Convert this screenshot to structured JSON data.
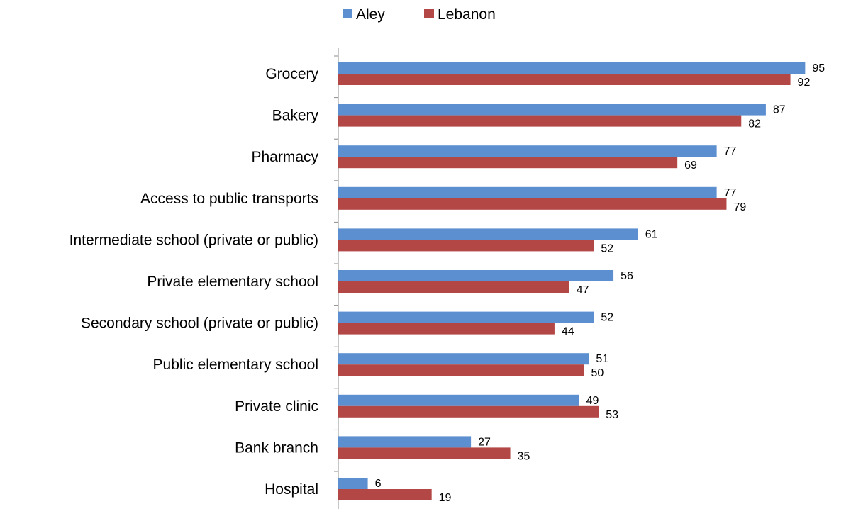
{
  "chart_data": {
    "type": "bar",
    "orientation": "horizontal",
    "categories": [
      "Grocery",
      "Bakery",
      "Pharmacy",
      "Access to public transports",
      "Intermediate school (private or public)",
      "Private elementary school",
      "Secondary school (private or public)",
      "Public elementary school",
      "Private clinic",
      "Bank branch",
      "Hospital"
    ],
    "series": [
      {
        "name": "Aley",
        "color": "#5b8fd0",
        "values": [
          95,
          87,
          77,
          77,
          61,
          56,
          52,
          51,
          49,
          27,
          6
        ]
      },
      {
        "name": "Lebanon",
        "color": "#b24745",
        "values": [
          92,
          82,
          69,
          79,
          52,
          47,
          44,
          50,
          53,
          35,
          19
        ]
      }
    ],
    "title": "",
    "xlabel": "",
    "ylabel": "",
    "xlim": [
      0,
      100
    ],
    "grid": false,
    "legend_position": "top-center",
    "data_labels": true
  }
}
